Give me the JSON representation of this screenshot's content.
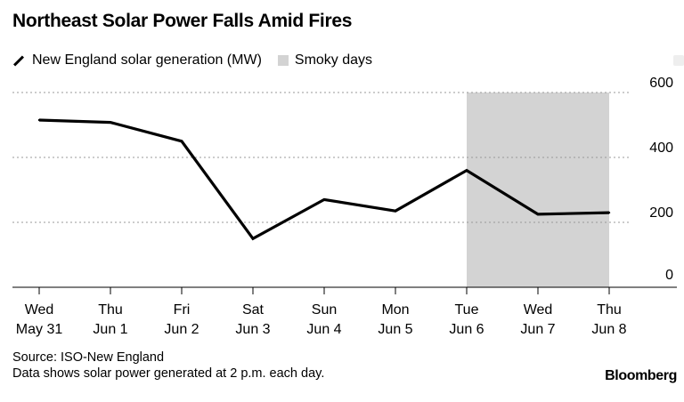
{
  "title": "Northeast Solar Power Falls Amid Fires",
  "legend": {
    "series_label": "New England solar generation (MW)",
    "shade_label": "Smoky days"
  },
  "footer": {
    "source": "Source: ISO-New England",
    "note": "Data shows solar power generated at 2 p.m. each day."
  },
  "brand": "Bloomberg",
  "colors": {
    "line": "#000000",
    "shade": "#d3d3d3",
    "grid": "#999999"
  },
  "chart_data": {
    "type": "line",
    "categories": [
      [
        "Wed",
        "May 31"
      ],
      [
        "Thu",
        "Jun 1"
      ],
      [
        "Fri",
        "Jun 2"
      ],
      [
        "Sat",
        "Jun 3"
      ],
      [
        "Sun",
        "Jun 4"
      ],
      [
        "Mon",
        "Jun 5"
      ],
      [
        "Tue",
        "Jun 6"
      ],
      [
        "Wed",
        "Jun 7"
      ],
      [
        "Thu",
        "Jun 8"
      ]
    ],
    "series": [
      {
        "name": "New England solar generation (MW)",
        "values": [
          515,
          508,
          450,
          150,
          270,
          235,
          360,
          225,
          230
        ]
      }
    ],
    "shaded_range": {
      "from": "Jun 6",
      "to": "Jun 8",
      "label": "Smoky days"
    },
    "ylim": [
      0,
      600
    ],
    "yticks": [
      0,
      200,
      400,
      600
    ],
    "yaxis_position": "right",
    "grid": "dotted horizontal"
  }
}
